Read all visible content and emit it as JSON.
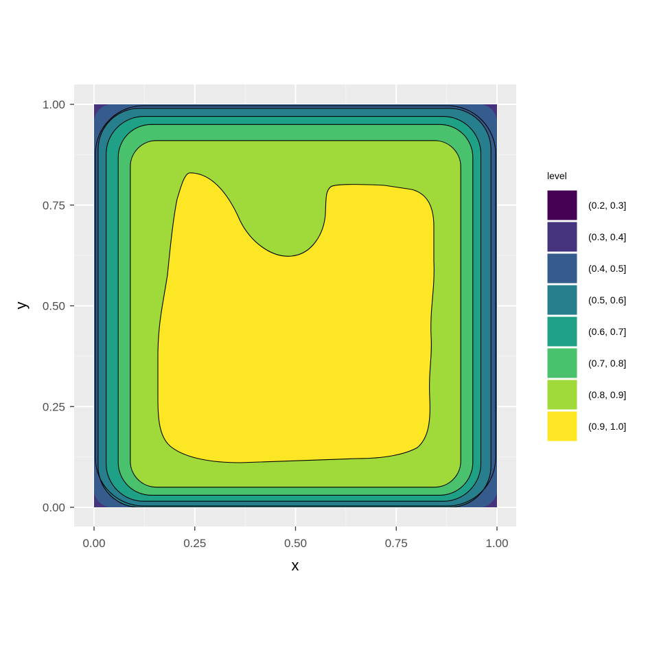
{
  "chart_data": {
    "type": "contour",
    "xlabel": "x",
    "ylabel": "y",
    "xlim": [
      0,
      1
    ],
    "ylim": [
      0,
      1
    ],
    "x_ticks": [
      "0.00",
      "0.25",
      "0.50",
      "0.75",
      "1.00"
    ],
    "y_ticks": [
      "0.00",
      "0.25",
      "0.50",
      "0.75",
      "1.00"
    ],
    "grid": true,
    "legend": {
      "title": "level",
      "placement": "right",
      "entries": [
        {
          "label": "(0.2, 0.3]",
          "color": "#440154"
        },
        {
          "label": "(0.3, 0.4]",
          "color": "#46337E"
        },
        {
          "label": "(0.4, 0.5]",
          "color": "#365C8D"
        },
        {
          "label": "(0.5, 0.6]",
          "color": "#277F8E"
        },
        {
          "label": "(0.6, 0.7]",
          "color": "#1FA187"
        },
        {
          "label": "(0.7, 0.8]",
          "color": "#4AC16D"
        },
        {
          "label": "(0.8, 0.9]",
          "color": "#9FDA3A"
        },
        {
          "label": "(0.9, 1.0]",
          "color": "#FDE725"
        }
      ]
    },
    "contour_breaks": [
      0.2,
      0.3,
      0.4,
      0.5,
      0.6,
      0.7,
      0.8,
      0.9,
      1.0
    ],
    "level_regions": [
      {
        "level": "(0.9, 1.0]",
        "x": [
          0.17,
          0.84
        ],
        "y": [
          0.1,
          0.83
        ]
      },
      {
        "level": "(0.8, 0.9]",
        "x": [
          0.09,
          0.91
        ],
        "y": [
          0.05,
          0.91
        ]
      },
      {
        "level": "(0.7, 0.8]",
        "x": [
          0.06,
          0.94
        ],
        "y": [
          0.03,
          0.95
        ]
      },
      {
        "level": "(0.6, 0.7]",
        "x": [
          0.03,
          0.96
        ],
        "y": [
          0.015,
          0.97
        ]
      },
      {
        "level": "(0.5, 0.6]",
        "x": [
          0.01,
          0.985
        ],
        "y": [
          0.0,
          0.99
        ]
      }
    ],
    "point_color": "#555555",
    "points": []
  }
}
